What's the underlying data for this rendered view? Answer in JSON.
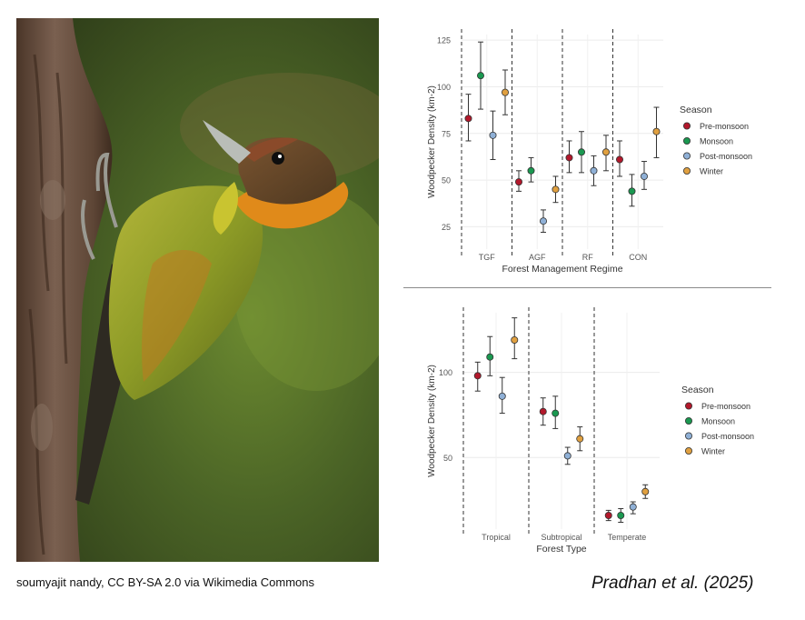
{
  "caption": {
    "credit": "soumyajit nandy, CC BY-SA 2.0 via Wikimedia Commons",
    "citation": "Pradhan et al. (2025)"
  },
  "series_colors": {
    "Pre-monsoon": "#b2182b",
    "Monsoon": "#1a9850",
    "Post-monsoon": "#8fb0d6",
    "Winter": "#e0a040"
  },
  "photo": {
    "subject": "woodpecker on tree trunk",
    "colors": {
      "bark": "#6b5242",
      "background": "#4f6a2a",
      "plumage": "#8a9a2a",
      "throat": "#e0901a",
      "crown": "#6a4a2a"
    }
  },
  "chart_data": [
    {
      "type": "scatter",
      "variant": "point-errorbar",
      "title": "",
      "xlabel": "Forest Management Regime",
      "ylabel": "Woodpecker Density (km-2)",
      "categories": [
        "TGF",
        "AGF",
        "RF",
        "CON"
      ],
      "ylim": [
        13,
        128
      ],
      "yticks": [
        25,
        50,
        75,
        100,
        125
      ],
      "grid": true,
      "legend": {
        "title": "Season",
        "position": "right",
        "entries": [
          "Pre-monsoon",
          "Monsoon",
          "Post-monsoon",
          "Winter"
        ]
      },
      "series": [
        {
          "name": "Pre-monsoon",
          "values": [
            83,
            49,
            62,
            61
          ],
          "lower": [
            71,
            44,
            54,
            52
          ],
          "upper": [
            96,
            55,
            71,
            71
          ]
        },
        {
          "name": "Monsoon",
          "values": [
            106,
            55,
            65,
            44
          ],
          "lower": [
            88,
            49,
            54,
            36
          ],
          "upper": [
            124,
            62,
            76,
            53
          ]
        },
        {
          "name": "Post-monsoon",
          "values": [
            74,
            28,
            55,
            52
          ],
          "lower": [
            61,
            22,
            47,
            45
          ],
          "upper": [
            87,
            34,
            63,
            60
          ]
        },
        {
          "name": "Winter",
          "values": [
            97,
            45,
            65,
            76
          ],
          "lower": [
            85,
            38,
            55,
            62
          ],
          "upper": [
            109,
            52,
            74,
            89
          ]
        }
      ]
    },
    {
      "type": "scatter",
      "variant": "point-errorbar",
      "title": "",
      "xlabel": "Forest Type",
      "ylabel": "Woodpecker Density (km-2)",
      "categories": [
        "Tropical",
        "Subtropical",
        "Temperate"
      ],
      "ylim": [
        8,
        135
      ],
      "yticks": [
        50,
        100
      ],
      "grid": true,
      "legend": {
        "title": "Season",
        "position": "right",
        "entries": [
          "Pre-monsoon",
          "Monsoon",
          "Post-monsoon",
          "Winter"
        ]
      },
      "series": [
        {
          "name": "Pre-monsoon",
          "values": [
            98,
            77,
            16
          ],
          "lower": [
            89,
            69,
            13
          ],
          "upper": [
            106,
            85,
            19
          ]
        },
        {
          "name": "Monsoon",
          "values": [
            109,
            76,
            16
          ],
          "lower": [
            98,
            67,
            12
          ],
          "upper": [
            121,
            86,
            20
          ]
        },
        {
          "name": "Post-monsoon",
          "values": [
            86,
            51,
            21
          ],
          "lower": [
            76,
            46,
            17
          ],
          "upper": [
            97,
            56,
            24
          ]
        },
        {
          "name": "Winter",
          "values": [
            119,
            61,
            30
          ],
          "lower": [
            108,
            54,
            26
          ],
          "upper": [
            132,
            68,
            34
          ]
        }
      ]
    }
  ]
}
